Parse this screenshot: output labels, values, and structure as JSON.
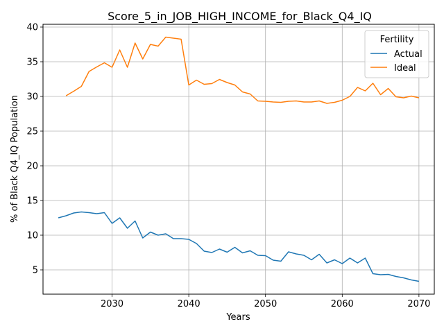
{
  "chart_data": {
    "type": "line",
    "title": "Score_5_in_JOB_HIGH_INCOME_for_Black_Q4_IQ",
    "xlabel": "Years",
    "ylabel": "% of Black Q4_IQ Population",
    "xlim": [
      2021,
      2072
    ],
    "ylim": [
      1.5,
      40.4
    ],
    "xticks": [
      2030,
      2040,
      2050,
      2060,
      2070
    ],
    "yticks": [
      5,
      10,
      15,
      20,
      25,
      30,
      35,
      40
    ],
    "grid": true,
    "legend": {
      "title": "Fertility",
      "placement": "top-right"
    },
    "series": [
      {
        "name": "Actual",
        "color": "#1f77b4",
        "x": [
          2023,
          2024,
          2025,
          2026,
          2027,
          2028,
          2029,
          2030,
          2031,
          2032,
          2033,
          2034,
          2035,
          2036,
          2037,
          2038,
          2039,
          2040,
          2041,
          2042,
          2043,
          2044,
          2045,
          2046,
          2047,
          2048,
          2049,
          2050,
          2051,
          2052,
          2053,
          2054,
          2055,
          2056,
          2057,
          2058,
          2059,
          2060,
          2061,
          2062,
          2063,
          2064,
          2065,
          2066,
          2067,
          2068,
          2069,
          2070
        ],
        "values": [
          12.5,
          12.8,
          13.2,
          13.35,
          13.25,
          13.1,
          13.25,
          11.7,
          12.5,
          11.0,
          12.05,
          9.6,
          10.45,
          10.0,
          10.2,
          9.5,
          9.5,
          9.4,
          8.8,
          7.7,
          7.5,
          8.0,
          7.55,
          8.25,
          7.45,
          7.75,
          7.1,
          7.05,
          6.4,
          6.25,
          7.6,
          7.3,
          7.1,
          6.45,
          7.25,
          6.0,
          6.45,
          5.9,
          6.7,
          6.0,
          6.7,
          4.45,
          4.3,
          4.35,
          4.05,
          3.85,
          3.55,
          3.35
        ]
      },
      {
        "name": "Ideal",
        "color": "#ff7f0e",
        "x": [
          2024,
          2025,
          2026,
          2027,
          2028,
          2029,
          2030,
          2031,
          2032,
          2033,
          2034,
          2035,
          2036,
          2037,
          2038,
          2039,
          2040,
          2041,
          2042,
          2043,
          2044,
          2045,
          2046,
          2047,
          2048,
          2049,
          2050,
          2051,
          2052,
          2053,
          2054,
          2055,
          2056,
          2057,
          2058,
          2059,
          2060,
          2061,
          2062,
          2063,
          2064,
          2065,
          2066,
          2067,
          2068,
          2069,
          2070
        ],
        "values": [
          30.1,
          30.75,
          31.45,
          33.6,
          34.25,
          34.85,
          34.2,
          36.7,
          34.2,
          37.7,
          35.4,
          37.5,
          37.25,
          38.55,
          38.4,
          38.25,
          31.65,
          32.35,
          31.75,
          31.85,
          32.45,
          32.0,
          31.65,
          30.65,
          30.35,
          29.35,
          29.3,
          29.2,
          29.15,
          29.3,
          29.35,
          29.2,
          29.2,
          29.35,
          29.0,
          29.15,
          29.45,
          30.0,
          31.3,
          30.8,
          31.9,
          30.25,
          31.15,
          29.95,
          29.8,
          30.05,
          29.8
        ]
      }
    ]
  }
}
